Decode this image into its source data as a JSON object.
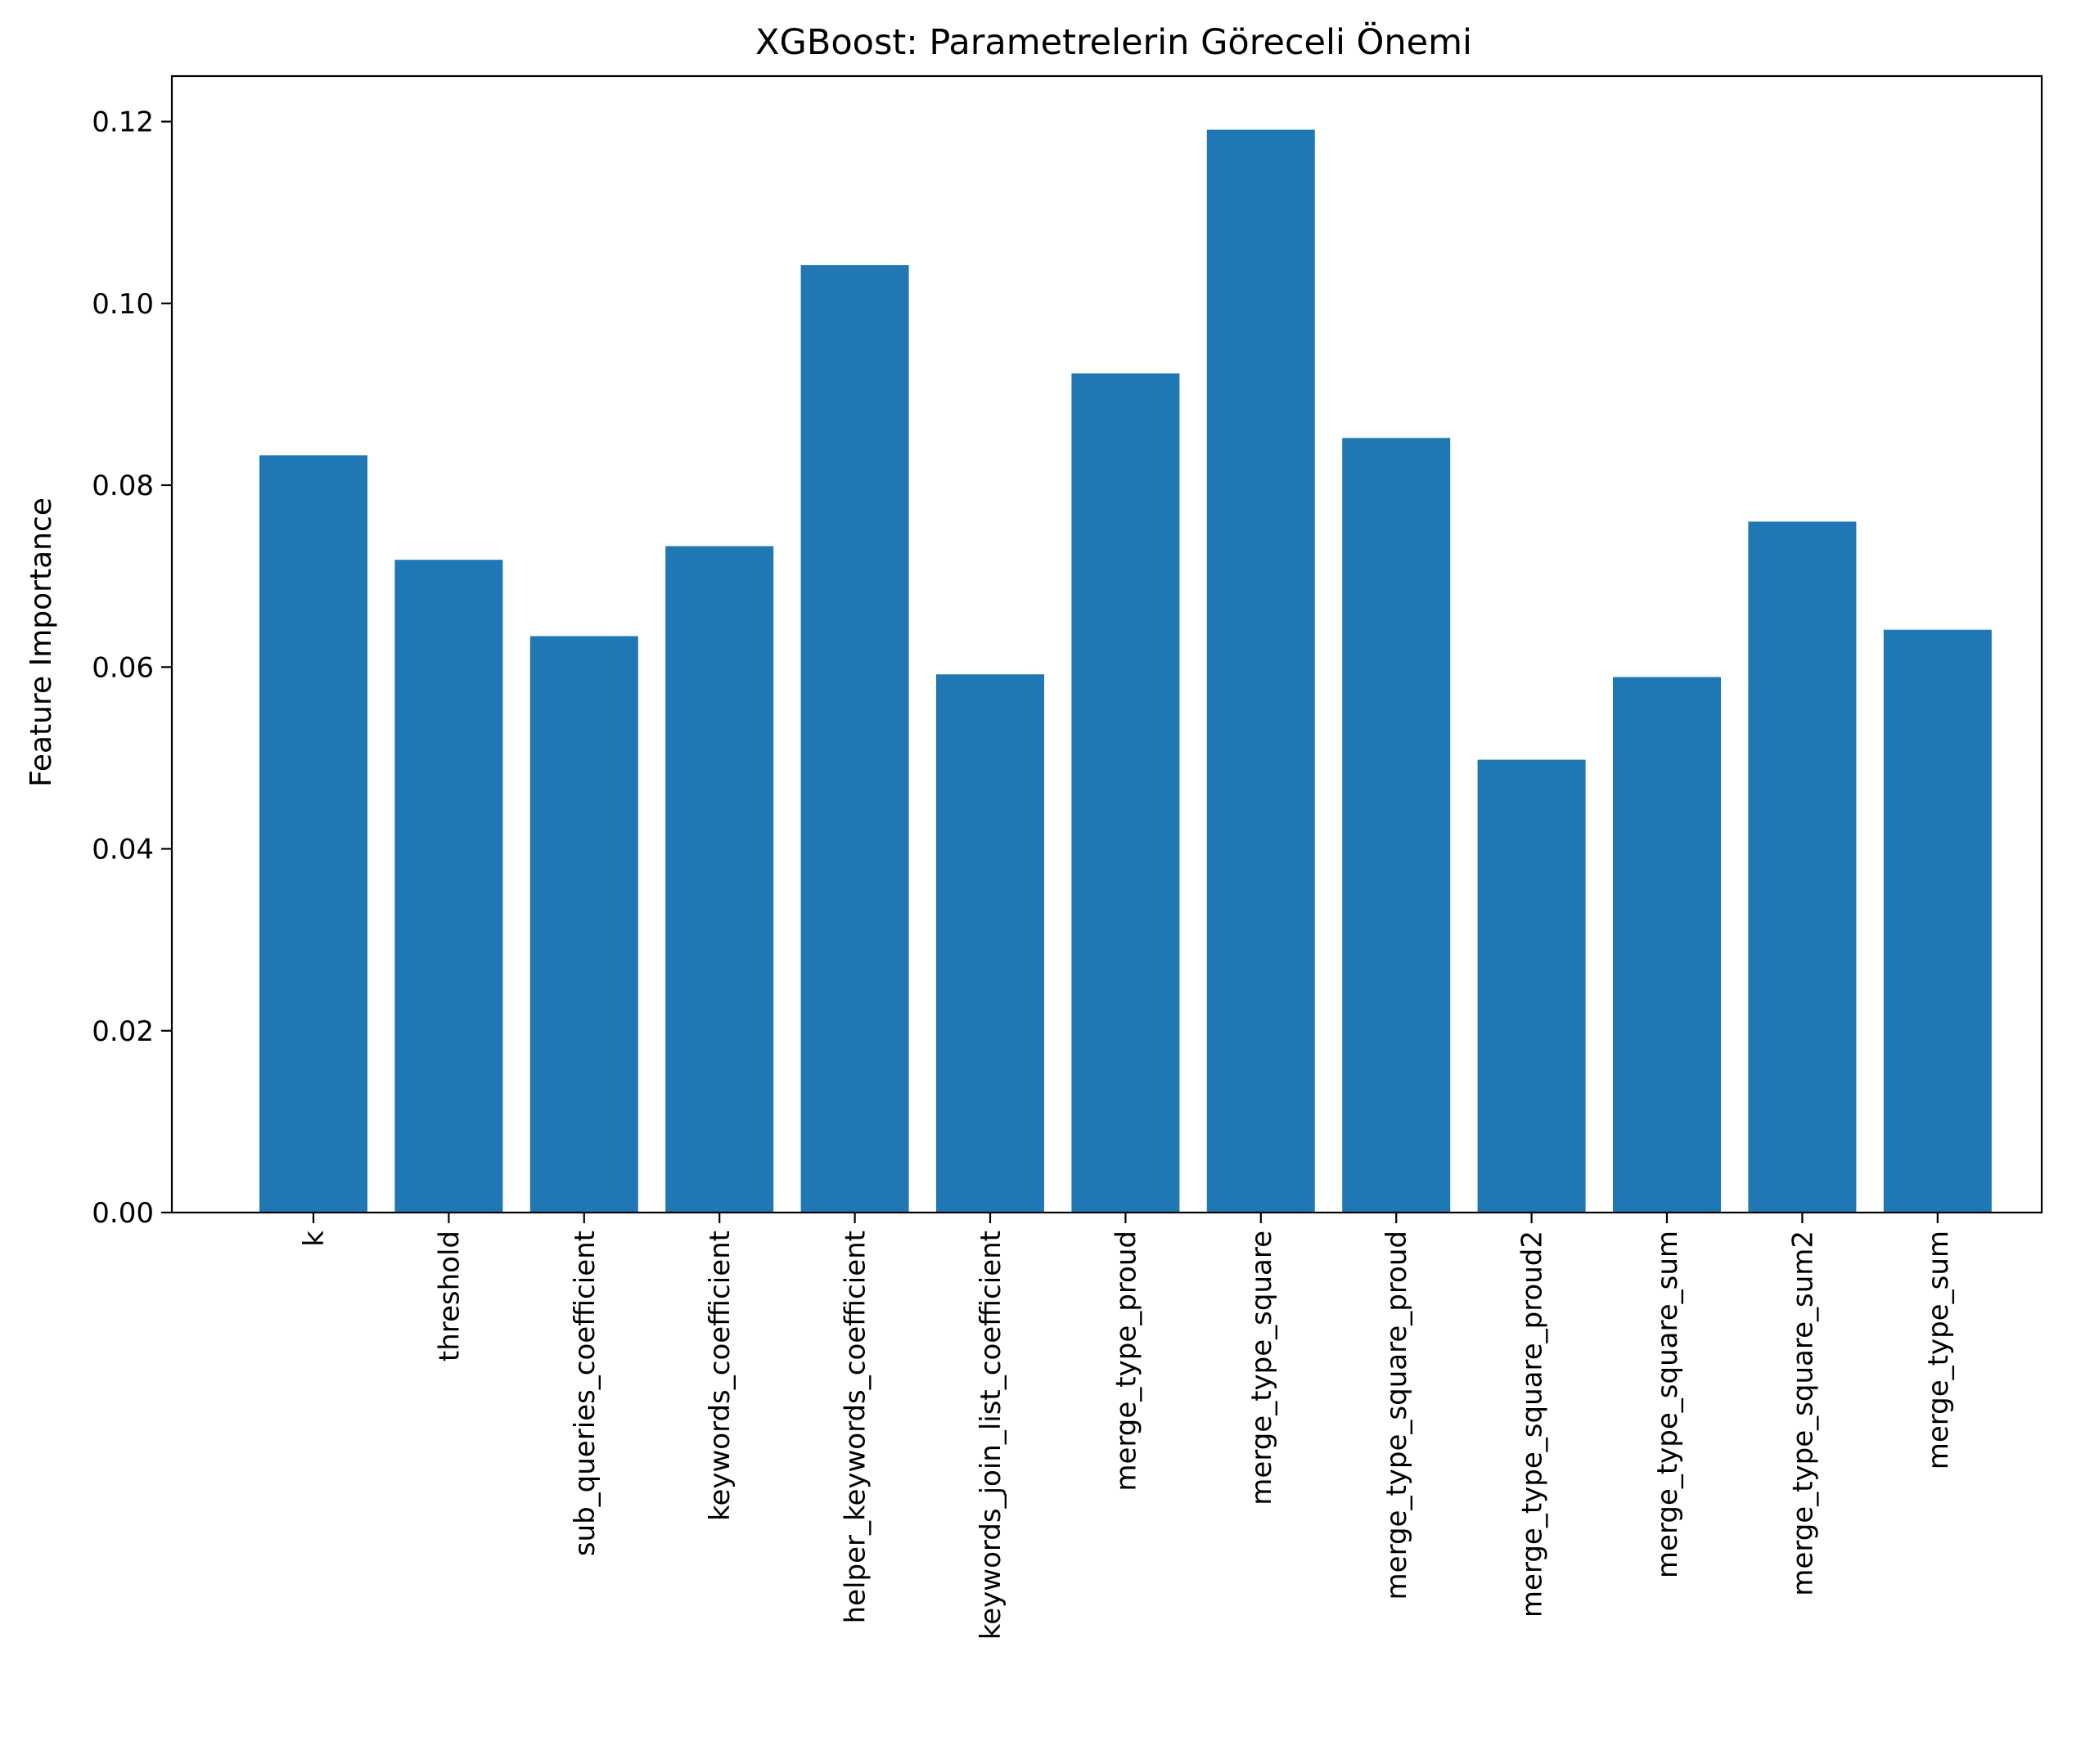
{
  "chart_data": {
    "type": "bar",
    "title": "XGBoost: Parametrelerin Göreceli Önemi",
    "xlabel": "",
    "ylabel": "Feature Importance",
    "ylim": [
      0,
      0.125
    ],
    "yticks": [
      0,
      0.02,
      0.04,
      0.06,
      0.08,
      0.1,
      0.12
    ],
    "ytick_labels": [
      "0.00",
      "0.02",
      "0.04",
      "0.06",
      "0.08",
      "0.10",
      "0.12"
    ],
    "categories": [
      "k",
      "threshold",
      "sub_queries_coefficient",
      "keywords_coefficient",
      "helper_keywords_coefficient",
      "keywords_join_list_coefficient",
      "merge_type_proud",
      "merge_type_square",
      "merge_type_square_proud",
      "merge_type_square_proud2",
      "merge_type_square_sum",
      "merge_type_square_sum2",
      "merge_type_sum"
    ],
    "values": [
      0.0833,
      0.0718,
      0.0634,
      0.0733,
      0.1042,
      0.0592,
      0.0923,
      0.1191,
      0.0852,
      0.0498,
      0.0589,
      0.076,
      0.0641
    ],
    "grid": false,
    "bar_color": "#1f77b4",
    "x_tick_rotation": "vertical"
  }
}
